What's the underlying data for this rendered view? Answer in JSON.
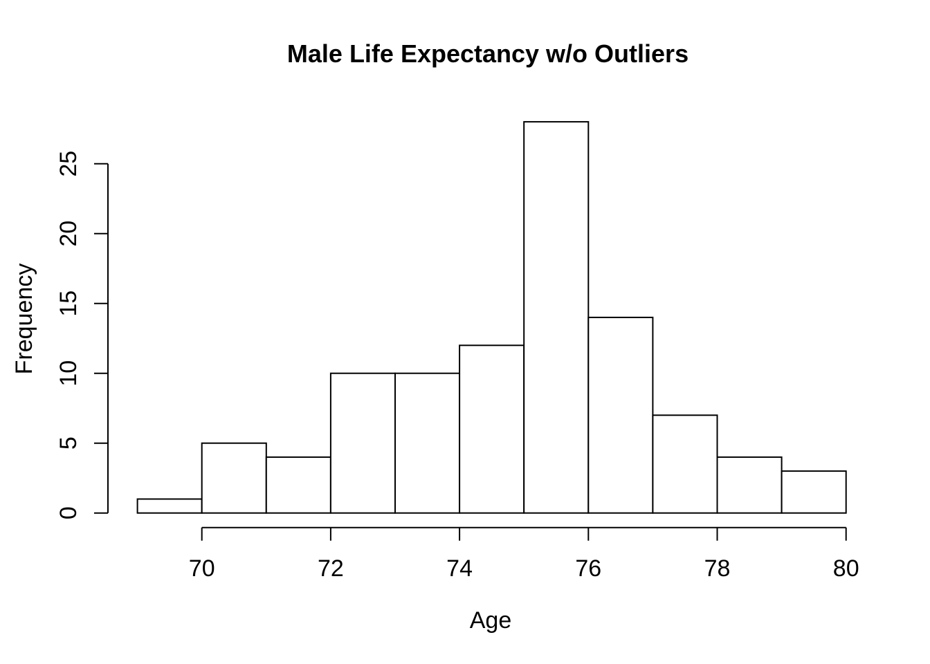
{
  "figure": {
    "background": "#ffffff",
    "foreground": "#000000"
  },
  "chart_data": {
    "type": "bar",
    "subtype": "histogram",
    "title": "Male Life Expectancy w/o Outliers",
    "xlabel": "Age",
    "ylabel": "Frequency",
    "bin_edges": [
      69,
      70,
      71,
      72,
      73,
      74,
      75,
      76,
      77,
      78,
      79,
      80
    ],
    "counts": [
      1,
      5,
      4,
      10,
      10,
      12,
      28,
      14,
      7,
      4,
      3
    ],
    "x_ticks": [
      70,
      72,
      74,
      76,
      78,
      80
    ],
    "y_ticks": [
      0,
      5,
      10,
      15,
      20,
      25
    ],
    "x_axis_range": [
      70,
      80
    ],
    "y_axis_range": [
      0,
      25
    ],
    "grid": false,
    "legend_position": "none",
    "bar_fill": "#ffffff",
    "stroke_color": "#000000",
    "background": "#ffffff"
  }
}
